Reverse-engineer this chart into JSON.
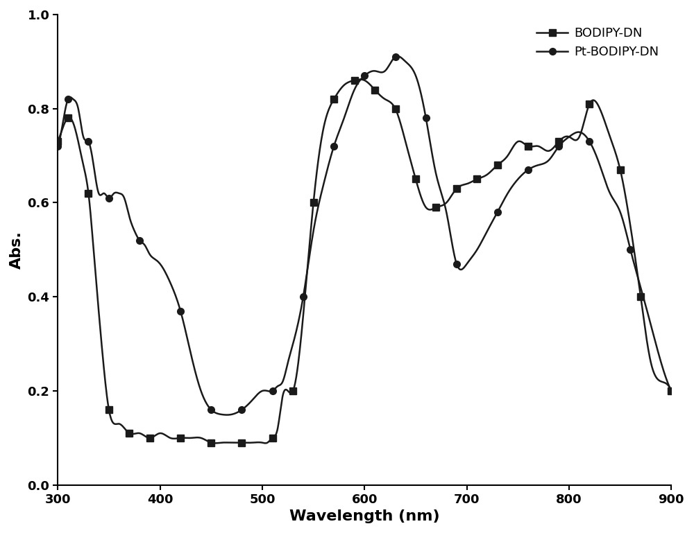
{
  "bodipy_x": [
    300,
    305,
    310,
    315,
    320,
    325,
    330,
    335,
    340,
    345,
    350,
    360,
    370,
    380,
    390,
    400,
    410,
    420,
    430,
    440,
    450,
    460,
    470,
    480,
    490,
    500,
    505,
    510,
    515,
    520,
    525,
    530,
    540,
    550,
    560,
    570,
    580,
    590,
    600,
    610,
    620,
    630,
    640,
    650,
    660,
    670,
    680,
    690,
    700,
    710,
    720,
    730,
    740,
    750,
    760,
    770,
    780,
    790,
    800,
    810,
    820,
    830,
    840,
    850,
    860,
    870,
    880,
    890,
    900
  ],
  "bodipy_y": [
    0.73,
    0.76,
    0.78,
    0.77,
    0.73,
    0.68,
    0.62,
    0.5,
    0.37,
    0.25,
    0.16,
    0.13,
    0.11,
    0.11,
    0.1,
    0.11,
    0.1,
    0.1,
    0.1,
    0.1,
    0.09,
    0.09,
    0.09,
    0.09,
    0.09,
    0.09,
    0.09,
    0.1,
    0.12,
    0.19,
    0.2,
    0.2,
    0.36,
    0.6,
    0.76,
    0.82,
    0.85,
    0.86,
    0.86,
    0.84,
    0.82,
    0.8,
    0.73,
    0.65,
    0.59,
    0.59,
    0.6,
    0.63,
    0.64,
    0.65,
    0.66,
    0.68,
    0.7,
    0.73,
    0.72,
    0.72,
    0.71,
    0.73,
    0.74,
    0.74,
    0.81,
    0.8,
    0.74,
    0.67,
    0.55,
    0.4,
    0.26,
    0.22,
    0.2
  ],
  "pt_x": [
    300,
    305,
    310,
    315,
    320,
    325,
    330,
    335,
    340,
    345,
    350,
    355,
    360,
    365,
    370,
    375,
    380,
    385,
    390,
    395,
    400,
    410,
    420,
    430,
    440,
    450,
    460,
    470,
    480,
    490,
    500,
    505,
    510,
    515,
    520,
    525,
    530,
    540,
    550,
    560,
    570,
    580,
    590,
    600,
    610,
    620,
    630,
    640,
    650,
    660,
    670,
    680,
    690,
    700,
    710,
    720,
    730,
    740,
    750,
    760,
    770,
    780,
    790,
    800,
    810,
    820,
    830,
    840,
    850,
    860,
    870,
    880,
    890,
    900
  ],
  "pt_y": [
    0.72,
    0.77,
    0.82,
    0.82,
    0.8,
    0.74,
    0.73,
    0.68,
    0.62,
    0.62,
    0.61,
    0.62,
    0.62,
    0.61,
    0.57,
    0.54,
    0.52,
    0.51,
    0.49,
    0.48,
    0.47,
    0.43,
    0.37,
    0.28,
    0.2,
    0.16,
    0.15,
    0.15,
    0.16,
    0.18,
    0.2,
    0.2,
    0.2,
    0.21,
    0.22,
    0.26,
    0.3,
    0.4,
    0.54,
    0.64,
    0.72,
    0.78,
    0.84,
    0.87,
    0.88,
    0.88,
    0.91,
    0.9,
    0.87,
    0.78,
    0.66,
    0.58,
    0.47,
    0.47,
    0.5,
    0.54,
    0.58,
    0.62,
    0.65,
    0.67,
    0.68,
    0.69,
    0.72,
    0.74,
    0.75,
    0.73,
    0.68,
    0.62,
    0.58,
    0.5,
    0.42,
    0.34,
    0.26,
    0.2
  ],
  "bodipy_marker_x": [
    300,
    310,
    330,
    350,
    370,
    390,
    420,
    450,
    480,
    510,
    530,
    550,
    570,
    590,
    610,
    630,
    650,
    670,
    690,
    710,
    730,
    760,
    790,
    820,
    850,
    870,
    900
  ],
  "bodipy_marker_y": [
    0.73,
    0.78,
    0.62,
    0.16,
    0.11,
    0.1,
    0.1,
    0.09,
    0.09,
    0.1,
    0.2,
    0.6,
    0.82,
    0.86,
    0.84,
    0.8,
    0.65,
    0.59,
    0.63,
    0.65,
    0.68,
    0.72,
    0.73,
    0.81,
    0.67,
    0.4,
    0.2
  ],
  "pt_marker_x": [
    300,
    310,
    330,
    350,
    380,
    420,
    450,
    480,
    510,
    540,
    570,
    600,
    630,
    660,
    690,
    730,
    760,
    790,
    820,
    860,
    900
  ],
  "pt_marker_y": [
    0.72,
    0.82,
    0.73,
    0.61,
    0.52,
    0.37,
    0.16,
    0.16,
    0.2,
    0.4,
    0.72,
    0.87,
    0.91,
    0.78,
    0.47,
    0.58,
    0.67,
    0.72,
    0.73,
    0.5,
    0.2
  ],
  "xlabel": "Wavelength (nm)",
  "ylabel": "Abs.",
  "xlim": [
    300,
    900
  ],
  "ylim": [
    0.0,
    1.0
  ],
  "xticks": [
    300,
    400,
    500,
    600,
    700,
    800,
    900
  ],
  "yticks": [
    0.0,
    0.2,
    0.4,
    0.6,
    0.8,
    1.0
  ],
  "legend_labels": [
    "BODIPY-DN",
    "Pt-BODIPY-DN"
  ],
  "line_color": "#1a1a1a",
  "marker_size": 7,
  "linewidth": 1.8,
  "figsize": [
    10.0,
    7.69
  ],
  "dpi": 100
}
